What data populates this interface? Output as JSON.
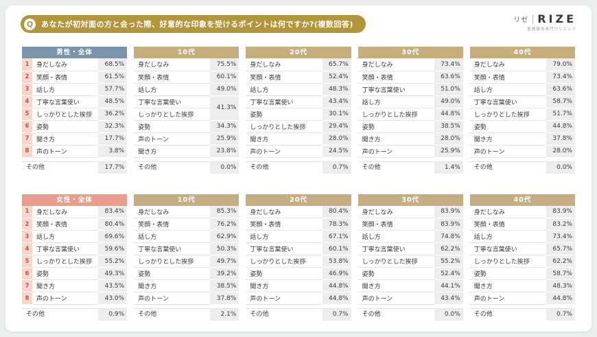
{
  "header": {
    "q_mark": "Q",
    "question": "あなたが初対面の方と会った際、好意的な印象を受けるポイントは何ですか?(複数回答)"
  },
  "logo": {
    "kana": "リゼ",
    "name": "RIZE",
    "subtitle": "医療脱毛専門クリニック"
  },
  "colors": {
    "banner": "#b3953c",
    "overall_male": "#7b94a9",
    "overall_female": "#ea9c8d",
    "age": "#c6ae81",
    "rank_bg": "#f6d7ce",
    "rank_fg": "#b25a49",
    "value_bg": "#ededed"
  },
  "chart_data": {
    "type": "table",
    "title": "あなたが初対面の方と会った際、好意的な印象を受けるポイントは何ですか?(複数回答)",
    "other_label": "その他",
    "groups": [
      {
        "id": "male",
        "tables": [
          {
            "title": "男性・全体",
            "header": "overall_male",
            "ranked": true,
            "rows": [
              {
                "rank": "1",
                "label": "身だしなみ",
                "value": "68.5%"
              },
              {
                "rank": "2",
                "label": "笑顔・表情",
                "value": "61.5%"
              },
              {
                "rank": "3",
                "label": "話し方",
                "value": "57.7%"
              },
              {
                "rank": "4",
                "label": "丁寧な言葉使い",
                "value": "48.5%"
              },
              {
                "rank": "5",
                "label": "しっかりとした挨拶",
                "value": "36.2%"
              },
              {
                "rank": "6",
                "label": "姿勢",
                "value": "32.3%"
              },
              {
                "rank": "7",
                "label": "聞き方",
                "value": "17.7%"
              },
              {
                "rank": "8",
                "label": "声のトーン",
                "value": "3.8%"
              }
            ],
            "other_value": "17.7%"
          },
          {
            "title": "10代",
            "header": "age",
            "ranked": false,
            "rows": [
              {
                "label": "身だしなみ",
                "value": "75.5%"
              },
              {
                "label": "笑顔・表情",
                "value": "60.1%"
              },
              {
                "label": "話し方",
                "value": "49.0%"
              },
              {
                "label": "丁寧な言葉使い",
                "value": "41.3%",
                "span": 2
              },
              {
                "label": "しっかりとした挨拶",
                "value": null
              },
              {
                "label": "姿勢",
                "value": "34.3%"
              },
              {
                "label": "声のトーン",
                "value": "25.9%"
              },
              {
                "label": "聞き方",
                "value": "23.8%"
              }
            ],
            "other_value": "0.0%"
          },
          {
            "title": "20代",
            "header": "age",
            "ranked": false,
            "rows": [
              {
                "label": "身だしなみ",
                "value": "65.7%"
              },
              {
                "label": "笑顔・表情",
                "value": "52.4%"
              },
              {
                "label": "話し方",
                "value": "48.3%"
              },
              {
                "label": "丁寧な言葉使い",
                "value": "43.4%"
              },
              {
                "label": "姿勢",
                "value": "30.1%"
              },
              {
                "label": "しっかりとした挨拶",
                "value": "29.4%"
              },
              {
                "label": "聞き方",
                "value": "28.0%"
              },
              {
                "label": "声のトーン",
                "value": "24.5%"
              }
            ],
            "other_value": "0.7%"
          },
          {
            "title": "30代",
            "header": "age",
            "ranked": false,
            "rows": [
              {
                "label": "身だしなみ",
                "value": "73.4%"
              },
              {
                "label": "笑顔・表情",
                "value": "63.6%"
              },
              {
                "label": "丁寧な言葉使い",
                "value": "51.0%"
              },
              {
                "label": "話し方",
                "value": "49.0%"
              },
              {
                "label": "しっかりとした挨拶",
                "value": "44.8%"
              },
              {
                "label": "姿勢",
                "value": "38.5%"
              },
              {
                "label": "聞き方",
                "value": "28.0%"
              },
              {
                "label": "声のトーン",
                "value": "25.9%"
              }
            ],
            "other_value": "1.4%"
          },
          {
            "title": "40代",
            "header": "age",
            "ranked": false,
            "rows": [
              {
                "label": "身だしなみ",
                "value": "79.0%"
              },
              {
                "label": "笑顔・表情",
                "value": "73.4%"
              },
              {
                "label": "話し方",
                "value": "63.6%"
              },
              {
                "label": "丁寧な言葉使い",
                "value": "58.7%"
              },
              {
                "label": "しっかりとした挨拶",
                "value": "51.7%"
              },
              {
                "label": "姿勢",
                "value": "44.8%"
              },
              {
                "label": "聞き方",
                "value": "37.8%"
              },
              {
                "label": "声のトーン",
                "value": "28.0%"
              }
            ],
            "other_value": "0.0%"
          }
        ]
      },
      {
        "id": "female",
        "tables": [
          {
            "title": "女性・全体",
            "header": "overall_female",
            "ranked": true,
            "rows": [
              {
                "rank": "1",
                "label": "身だしなみ",
                "value": "83.4%"
              },
              {
                "rank": "2",
                "label": "笑顔・表情",
                "value": "80.4%"
              },
              {
                "rank": "3",
                "label": "話し方",
                "value": "69.6%"
              },
              {
                "rank": "4",
                "label": "丁寧な言葉使い",
                "value": "59.6%"
              },
              {
                "rank": "5",
                "label": "しっかりとした挨拶",
                "value": "55.2%"
              },
              {
                "rank": "6",
                "label": "姿勢",
                "value": "49.3%"
              },
              {
                "rank": "7",
                "label": "聞き方",
                "value": "43.5%"
              },
              {
                "rank": "8",
                "label": "声のトーン",
                "value": "43.0%"
              }
            ],
            "other_value": "0.9%"
          },
          {
            "title": "10代",
            "header": "age",
            "ranked": false,
            "rows": [
              {
                "label": "身だしなみ",
                "value": "85.3%"
              },
              {
                "label": "笑顔・表情",
                "value": "76.2%"
              },
              {
                "label": "話し方",
                "value": "62.9%"
              },
              {
                "label": "丁寧な言葉使い",
                "value": "50.3%"
              },
              {
                "label": "しっかりとした挨拶",
                "value": "49.7%"
              },
              {
                "label": "姿勢",
                "value": "39.2%"
              },
              {
                "label": "聞き方",
                "value": "38.5%"
              },
              {
                "label": "声のトーン",
                "value": "37.8%"
              }
            ],
            "other_value": "2.1%"
          },
          {
            "title": "20代",
            "header": "age",
            "ranked": false,
            "rows": [
              {
                "label": "身だしなみ",
                "value": "80.4%"
              },
              {
                "label": "笑顔・表情",
                "value": "78.3%"
              },
              {
                "label": "話し方",
                "value": "67.1%"
              },
              {
                "label": "丁寧な言葉使い",
                "value": "60.1%"
              },
              {
                "label": "しっかりとした挨拶",
                "value": "53.8%"
              },
              {
                "label": "姿勢",
                "value": "46.9%"
              },
              {
                "label": "聞き方",
                "value": "44.8%"
              },
              {
                "label": "声のトーン",
                "value": "44.8%"
              }
            ],
            "other_value": "0.7%"
          },
          {
            "title": "30代",
            "header": "age",
            "ranked": false,
            "rows": [
              {
                "label": "身だしなみ",
                "value": "83.9%"
              },
              {
                "label": "笑顔・表情",
                "value": "83.9%"
              },
              {
                "label": "話し方",
                "value": "74.8%"
              },
              {
                "label": "丁寧な言葉使い",
                "value": "62.2%"
              },
              {
                "label": "しっかりとした挨拶",
                "value": "55.2%"
              },
              {
                "label": "姿勢",
                "value": "52.4%"
              },
              {
                "label": "聞き方",
                "value": "44.1%"
              },
              {
                "label": "声のトーン",
                "value": "43.4%"
              }
            ],
            "other_value": "0.0%"
          },
          {
            "title": "40代",
            "header": "age",
            "ranked": false,
            "rows": [
              {
                "label": "身だしなみ",
                "value": "83.9%"
              },
              {
                "label": "笑顔・表情",
                "value": "83.2%"
              },
              {
                "label": "話し方",
                "value": "73.4%"
              },
              {
                "label": "丁寧な言葉使い",
                "value": "65.7%"
              },
              {
                "label": "しっかりとした挨拶",
                "value": "62.2%"
              },
              {
                "label": "姿勢",
                "value": "58.7%"
              },
              {
                "label": "聞き方",
                "value": "48.3%"
              },
              {
                "label": "声のトーン",
                "value": "44.8%"
              }
            ],
            "other_value": "0.7%"
          }
        ]
      }
    ]
  }
}
